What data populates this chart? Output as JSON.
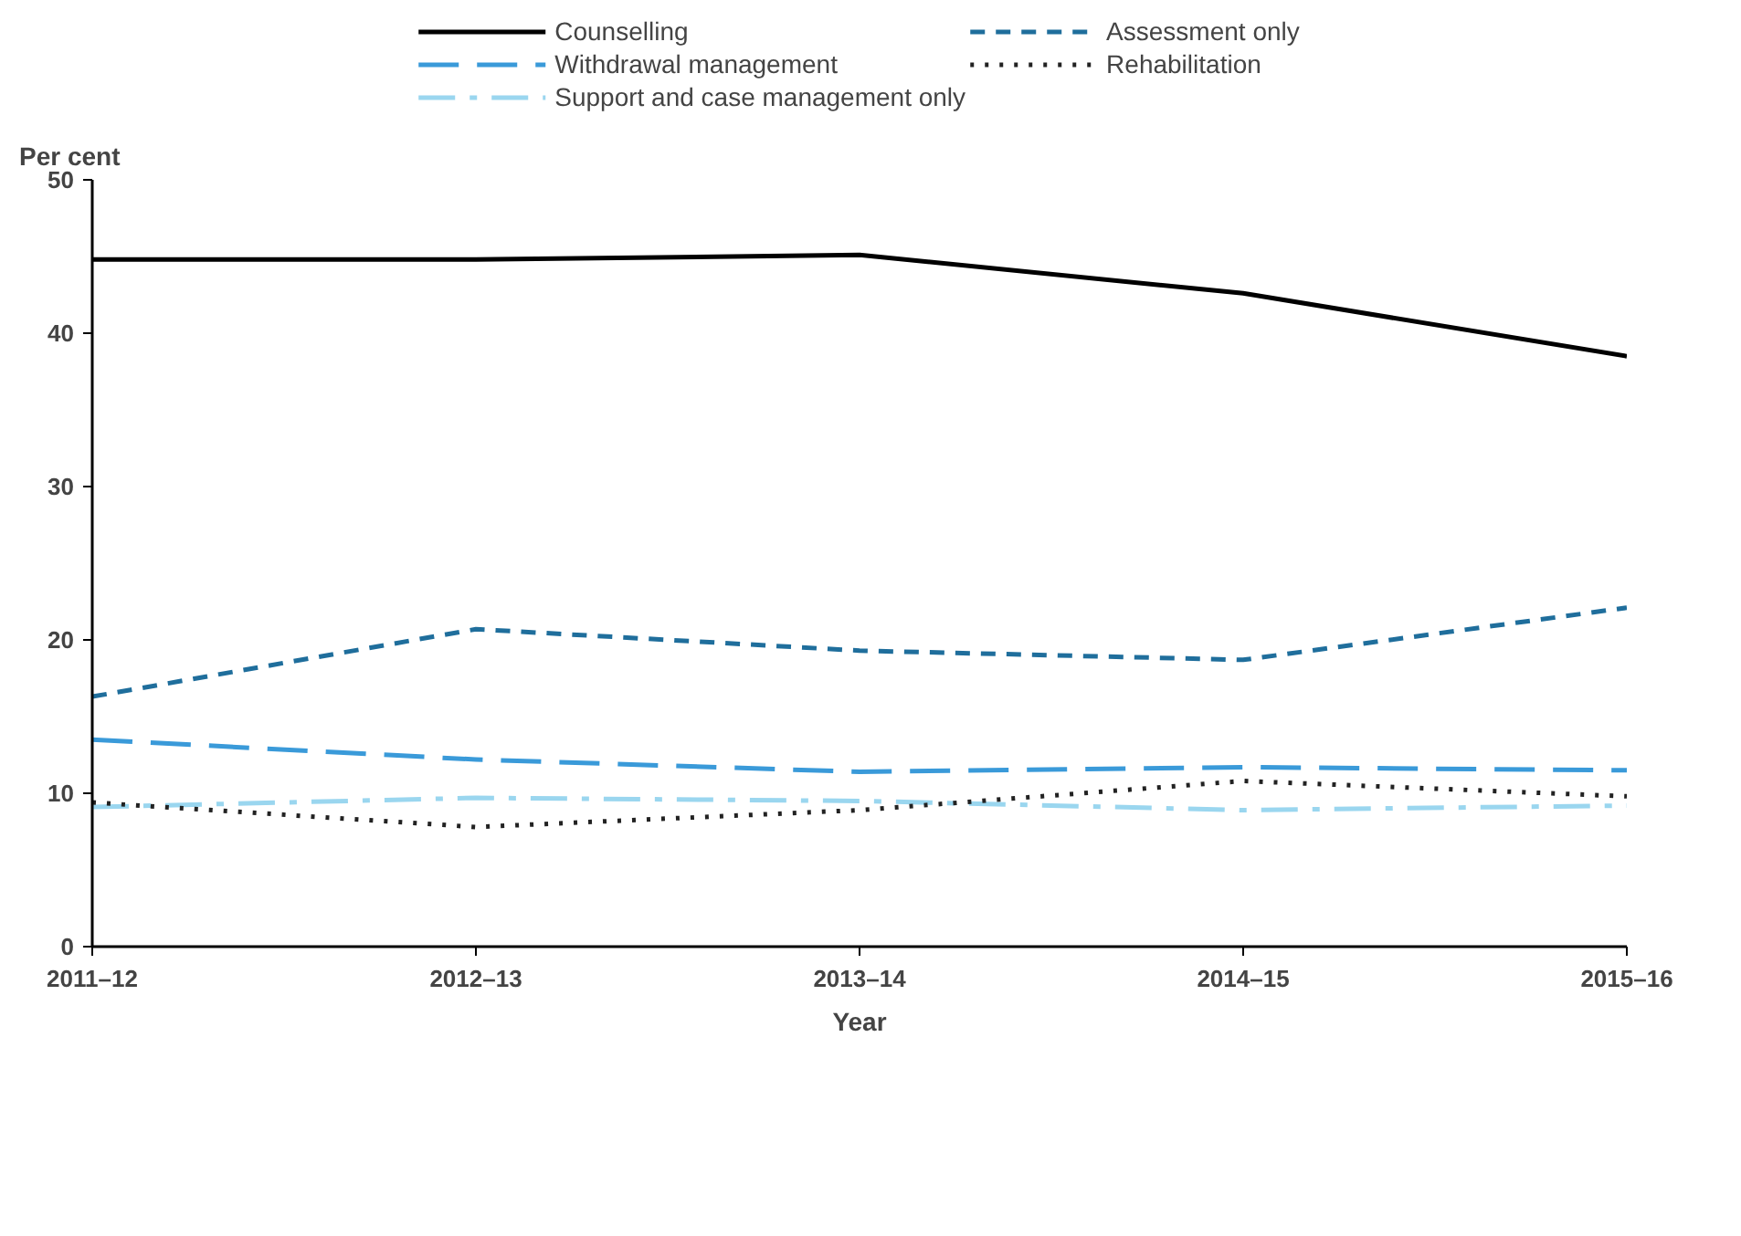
{
  "chart_data": {
    "type": "line",
    "xlabel": "Year",
    "ylabel": "Per cent",
    "categories": [
      "2011–12",
      "2012–13",
      "2013–14",
      "2014–15",
      "2015–16"
    ],
    "series": [
      {
        "name": "Counselling",
        "color": "#000000",
        "line_style": "solid",
        "values": [
          44.8,
          44.8,
          45.1,
          42.6,
          38.5
        ]
      },
      {
        "name": "Withdrawal management",
        "color": "#3a9ad9",
        "line_style": "longdash",
        "values": [
          13.5,
          12.2,
          11.4,
          11.7,
          11.5
        ]
      },
      {
        "name": "Support and case management only",
        "color": "#9ad6ef",
        "line_style": "dashdot",
        "values": [
          9.1,
          9.7,
          9.5,
          8.9,
          9.2
        ]
      },
      {
        "name": "Assessment only",
        "color": "#1f6e9c",
        "line_style": "dashed",
        "values": [
          16.3,
          20.7,
          19.3,
          18.7,
          22.1
        ]
      },
      {
        "name": "Rehabilitation",
        "color": "#222222",
        "line_style": "dotted",
        "values": [
          9.4,
          7.8,
          8.9,
          10.8,
          9.8
        ]
      }
    ],
    "ylim": [
      0,
      50
    ],
    "yticks": [
      0,
      10,
      20,
      30,
      40,
      50
    ],
    "grid": false,
    "legend": "top",
    "marker": "none"
  }
}
